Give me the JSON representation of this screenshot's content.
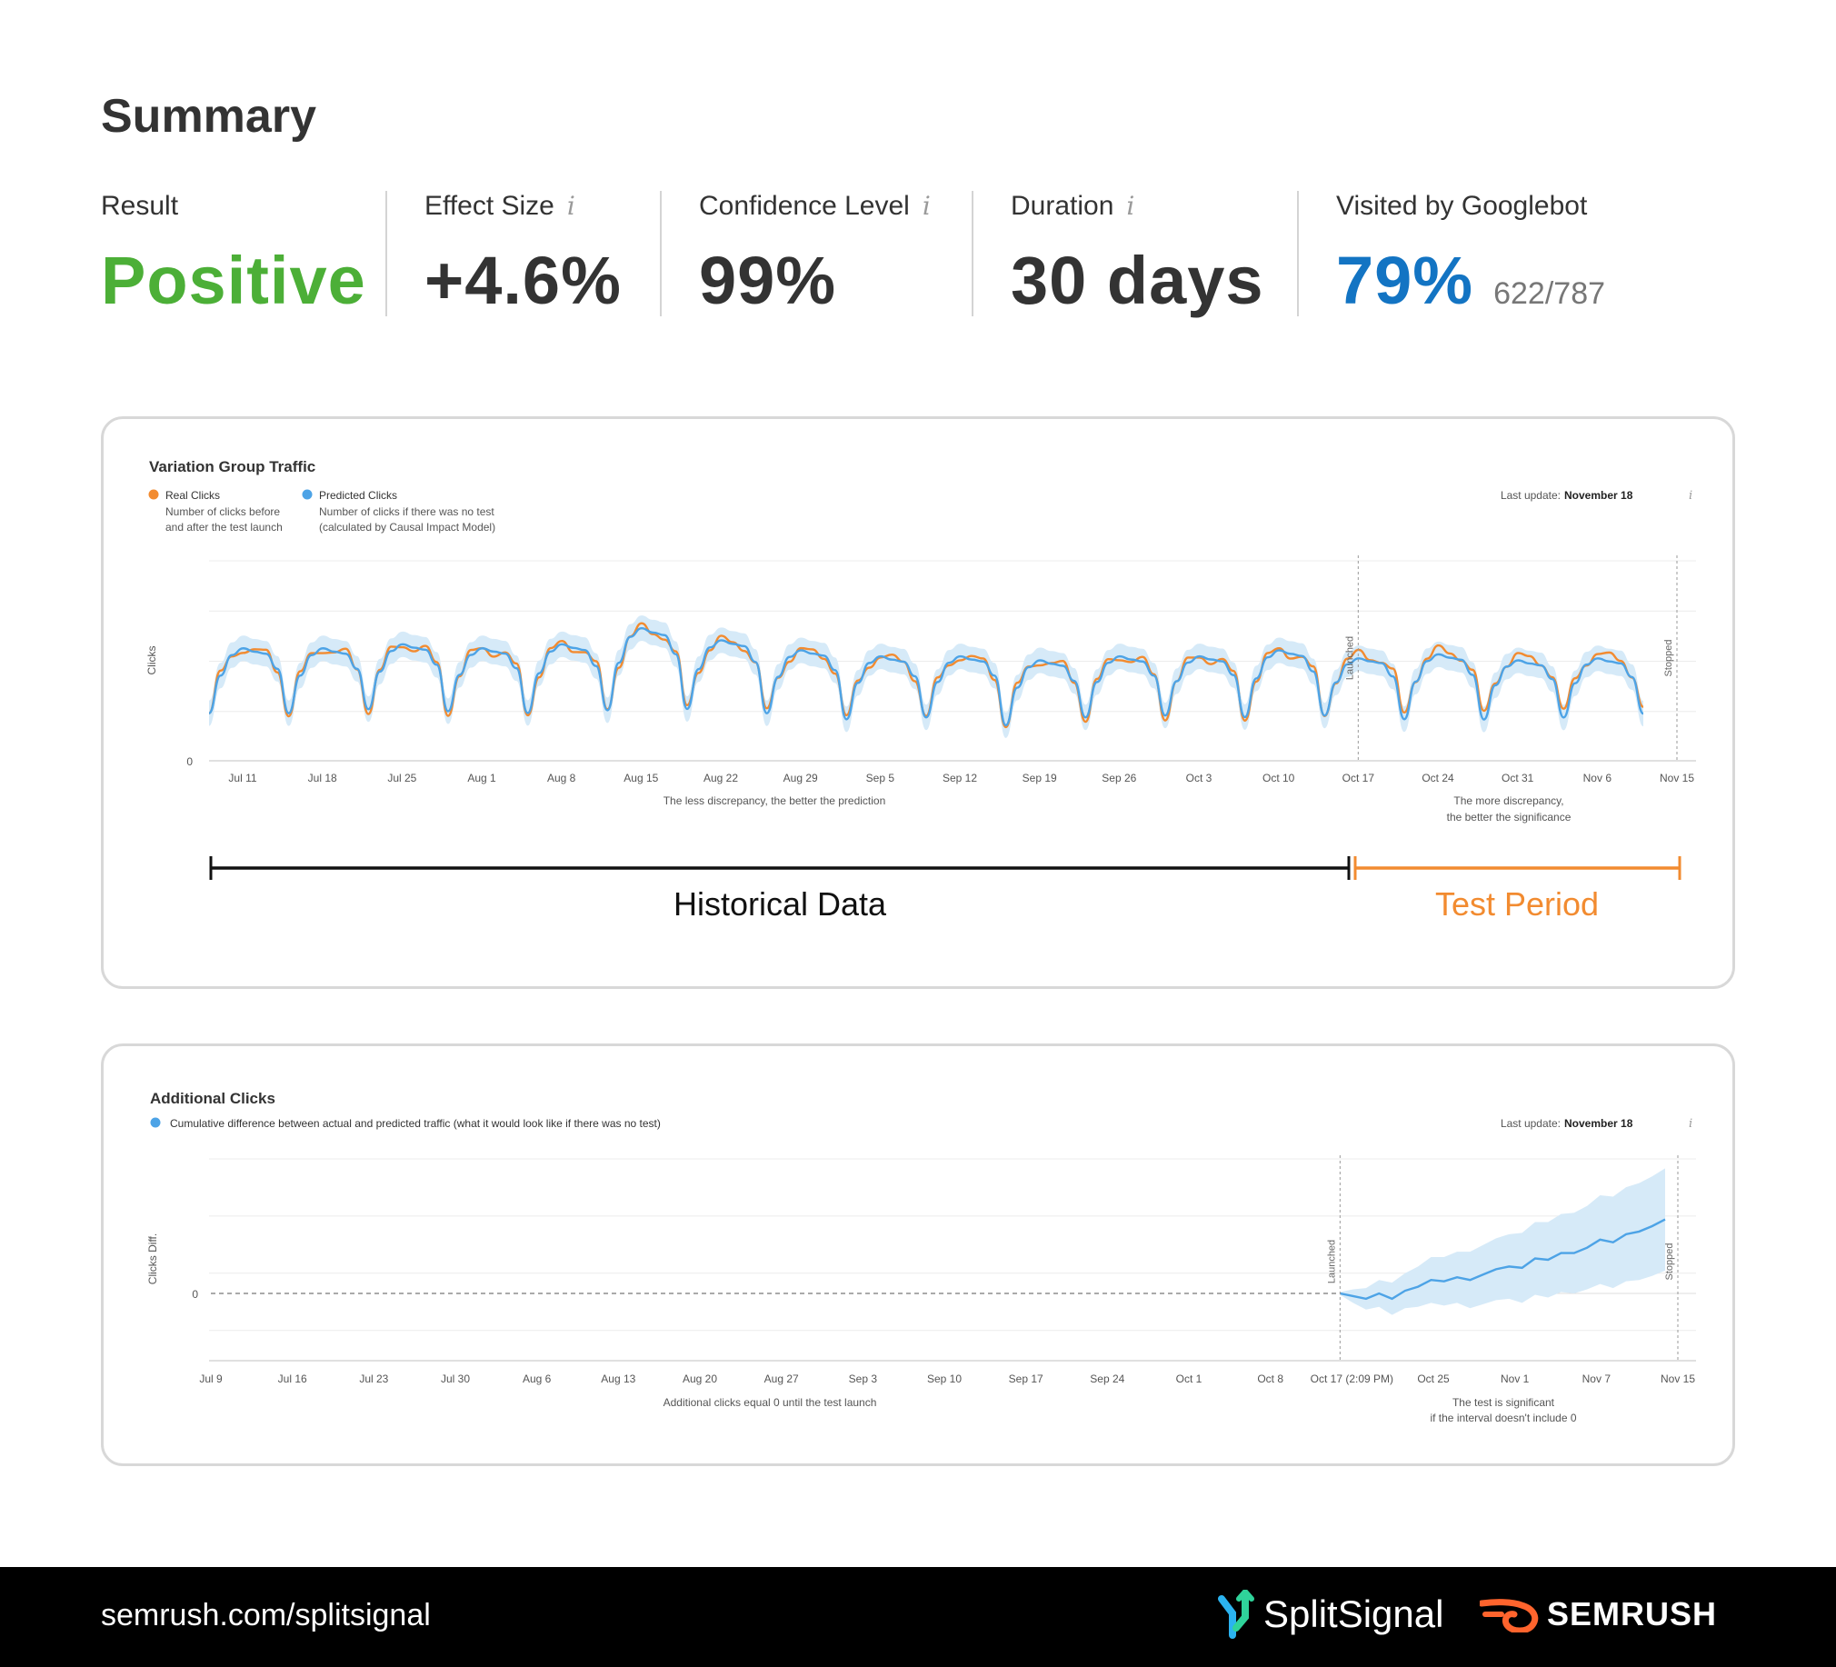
{
  "summary": {
    "title": "Summary",
    "metrics": [
      {
        "label": "Result",
        "value": "Positive",
        "info": false
      },
      {
        "label": "Effect Size",
        "value": "+4.6%",
        "info": true
      },
      {
        "label": "Confidence Level",
        "value": "99%",
        "info": true
      },
      {
        "label": "Duration",
        "value": "30 days",
        "info": true
      },
      {
        "label": "Visited by Googlebot",
        "value": "79%",
        "sub": "622/787",
        "info": false
      }
    ],
    "info_glyph": "i"
  },
  "colors": {
    "positive": "#4caf37",
    "blue": "#1374c3",
    "real": "#f28b30",
    "predicted": "#4da3e6",
    "band": "#d6eaf8",
    "orange_period": "#f28b30"
  },
  "chart_data": [
    {
      "type": "line",
      "title": "Variation Group Traffic",
      "legend": [
        {
          "name": "Real Clicks",
          "desc1": "Number of clicks before",
          "desc2": "and after the test launch",
          "color": "#f28b30"
        },
        {
          "name": "Predicted Clicks",
          "desc1": "Number of clicks if there was no test",
          "desc2": "(calculated by Causal Impact Model)",
          "color": "#4da3e6"
        }
      ],
      "last_update_label": "Last update:",
      "last_update_value": "November 18",
      "ylabel": "Clicks",
      "y_tick_zero": "0",
      "x_ticks": [
        "Jul 11",
        "Jul 18",
        "Jul 25",
        "Aug 1",
        "Aug 8",
        "Aug 15",
        "Aug 22",
        "Aug 29",
        "Sep 5",
        "Sep 12",
        "Sep 19",
        "Sep 26",
        "Oct 3",
        "Oct 10",
        "Oct 17",
        "Oct 24",
        "Oct 31",
        "Nov 6",
        "Nov 15"
      ],
      "annotation_left": "The less discrepancy, the better the prediction",
      "annotation_right_1": "The more discrepancy,",
      "annotation_right_2": "the better the significance",
      "launched_label": "Launched",
      "stopped_label": "Stopped",
      "weekly_highs": [
        0.56,
        0.56,
        0.58,
        0.56,
        0.58,
        0.66,
        0.6,
        0.55,
        0.52,
        0.52,
        0.5,
        0.52,
        0.52,
        0.55,
        0.51,
        0.53,
        0.5,
        0.51,
        0.52
      ],
      "weekly_lows": [
        0.22,
        0.22,
        0.24,
        0.23,
        0.22,
        0.23,
        0.24,
        0.22,
        0.19,
        0.2,
        0.16,
        0.2,
        0.21,
        0.2,
        0.21,
        0.19,
        0.19,
        0.2,
        0.22
      ],
      "ylim": [
        0,
        1
      ],
      "launch_index": 14,
      "periods": {
        "historical": "Historical Data",
        "test": "Test Period"
      }
    },
    {
      "type": "area",
      "title": "Additional Clicks",
      "legend": [
        {
          "name": "Cumulative difference between actual and predicted traffic (what it would look like if there was no test)",
          "color": "#4da3e6"
        }
      ],
      "last_update_label": "Last update:",
      "last_update_value": "November 18",
      "ylabel": "Clicks Diff.",
      "y_tick_zero": "0",
      "x_ticks": [
        "Jul 9",
        "Jul 16",
        "Jul 23",
        "Jul 30",
        "Aug 6",
        "Aug 13",
        "Aug 20",
        "Aug 27",
        "Sep 3",
        "Sep 10",
        "Sep 17",
        "Sep 24",
        "Oct 1",
        "Oct 8",
        "Oct 17 (2:09 PM)",
        "Oct 25",
        "Nov 1",
        "Nov 7",
        "Nov 15"
      ],
      "annotation_left": "Additional clicks equal 0 until the test launch",
      "annotation_right_1": "The test is significant",
      "annotation_right_2": "if the interval doesn't include 0",
      "launched_label": "Launched",
      "stopped_label": "Stopped",
      "test_values": [
        0,
        -0.02,
        -0.04,
        0.0,
        -0.04,
        0.02,
        0.05,
        0.1,
        0.09,
        0.12,
        0.1,
        0.14,
        0.18,
        0.2,
        0.19,
        0.26,
        0.25,
        0.3,
        0.3,
        0.34,
        0.4,
        0.38,
        0.44,
        0.46,
        0.5,
        0.55
      ],
      "band_half_width": [
        0.01,
        0.05,
        0.08,
        0.1,
        0.12,
        0.13,
        0.15,
        0.17,
        0.18,
        0.19,
        0.21,
        0.22,
        0.23,
        0.24,
        0.26,
        0.27,
        0.28,
        0.29,
        0.3,
        0.31,
        0.33,
        0.34,
        0.35,
        0.36,
        0.37,
        0.38
      ],
      "ylim": [
        -0.5,
        1.0
      ]
    }
  ],
  "footer": {
    "url": "semrush.com/splitsignal",
    "brand1": "SplitSignal",
    "brand2": "SEMRUSH"
  }
}
